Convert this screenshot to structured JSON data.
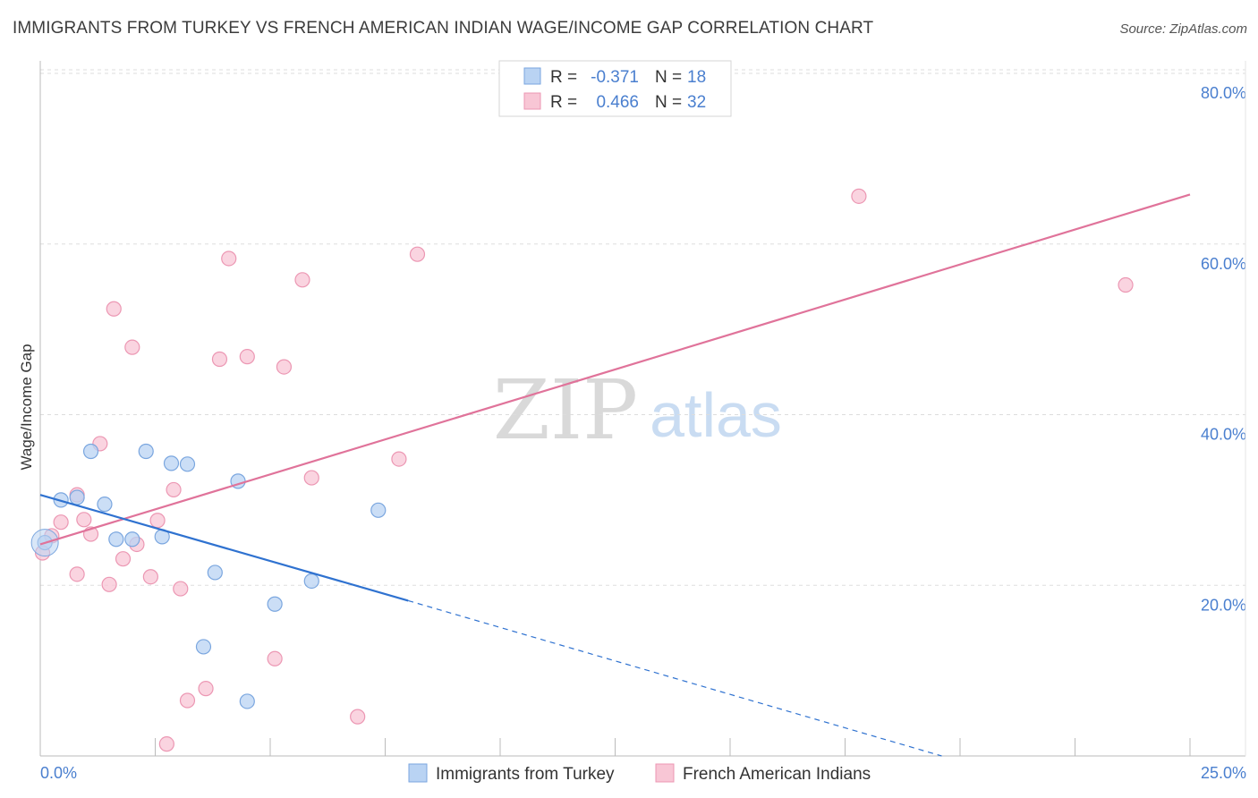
{
  "header": {
    "title": "IMMIGRANTS FROM TURKEY VS FRENCH AMERICAN INDIAN WAGE/INCOME GAP CORRELATION CHART",
    "source": "Source: ZipAtlas.com"
  },
  "watermark": {
    "zip": "ZIP",
    "atlas": "atlas"
  },
  "colors": {
    "blue_fill": "#b9d3f3",
    "blue_stroke": "#7aa6df",
    "blue_line": "#2f72d0",
    "pink_fill": "#f8c6d5",
    "pink_stroke": "#ec97b3",
    "pink_line": "#e0739a",
    "axis_label": "#4a7fcf",
    "grid": "#dddddd"
  },
  "chart_data": {
    "type": "scatter",
    "title": "IMMIGRANTS FROM TURKEY VS FRENCH AMERICAN INDIAN WAGE/INCOME GAP CORRELATION CHART",
    "xlabel": "",
    "ylabel": "Wage/Income Gap",
    "xlim": [
      0,
      25
    ],
    "ylim": [
      0,
      80
    ],
    "x_ticks": [
      0,
      25
    ],
    "x_tick_labels": [
      "0.0%",
      "25.0%"
    ],
    "y_ticks": [
      20,
      40,
      60,
      80
    ],
    "y_tick_labels": [
      "20.0%",
      "40.0%",
      "60.0%",
      "80.0%"
    ],
    "legend_position": "top-center",
    "legend": [
      {
        "r_label": "R =",
        "r_value": "-0.371",
        "n_label": "N =",
        "n_value": "18"
      },
      {
        "r_label": "R =",
        "r_value": "0.466",
        "n_label": "N =",
        "n_value": "32"
      }
    ],
    "series": [
      {
        "name": "Immigrants from Turkey",
        "color": "blue",
        "points": [
          [
            0.1,
            25.0
          ],
          [
            0.45,
            30.0
          ],
          [
            0.8,
            30.3
          ],
          [
            1.1,
            35.7
          ],
          [
            1.4,
            29.5
          ],
          [
            1.65,
            25.4
          ],
          [
            2.0,
            25.4
          ],
          [
            2.3,
            35.7
          ],
          [
            2.65,
            25.7
          ],
          [
            2.85,
            34.3
          ],
          [
            3.2,
            34.2
          ],
          [
            3.8,
            21.5
          ],
          [
            3.55,
            12.8
          ],
          [
            4.3,
            32.2
          ],
          [
            4.5,
            6.4
          ],
          [
            5.1,
            17.8
          ],
          [
            5.9,
            20.5
          ],
          [
            7.35,
            28.8
          ]
        ],
        "trend": {
          "x0": 0,
          "y0": 30.6,
          "x1": 8.0,
          "y1": 18.2
        },
        "trend_dashed": {
          "x0": 8.0,
          "y0": 18.2,
          "x1": 19.6,
          "y1": 0
        }
      },
      {
        "name": "French American Indians",
        "color": "pink",
        "points": [
          [
            0.05,
            23.8
          ],
          [
            0.25,
            25.8
          ],
          [
            0.45,
            27.4
          ],
          [
            0.8,
            30.6
          ],
          [
            0.8,
            21.3
          ],
          [
            0.95,
            27.7
          ],
          [
            1.1,
            26.0
          ],
          [
            1.3,
            36.6
          ],
          [
            1.5,
            20.1
          ],
          [
            1.6,
            52.4
          ],
          [
            1.8,
            23.1
          ],
          [
            2.0,
            47.9
          ],
          [
            2.1,
            24.8
          ],
          [
            2.4,
            21.0
          ],
          [
            2.55,
            27.6
          ],
          [
            2.75,
            1.4
          ],
          [
            2.9,
            31.2
          ],
          [
            3.05,
            19.6
          ],
          [
            3.2,
            6.5
          ],
          [
            3.6,
            7.9
          ],
          [
            3.9,
            46.5
          ],
          [
            4.1,
            58.3
          ],
          [
            4.5,
            46.8
          ],
          [
            5.1,
            11.4
          ],
          [
            5.3,
            45.6
          ],
          [
            5.7,
            55.8
          ],
          [
            5.9,
            32.6
          ],
          [
            6.9,
            4.6
          ],
          [
            7.8,
            34.8
          ],
          [
            8.2,
            58.8
          ],
          [
            17.8,
            65.6
          ],
          [
            23.6,
            55.2
          ]
        ],
        "trend": {
          "x0": 0,
          "y0": 24.8,
          "x1": 25.0,
          "y1": 65.8
        }
      }
    ]
  }
}
